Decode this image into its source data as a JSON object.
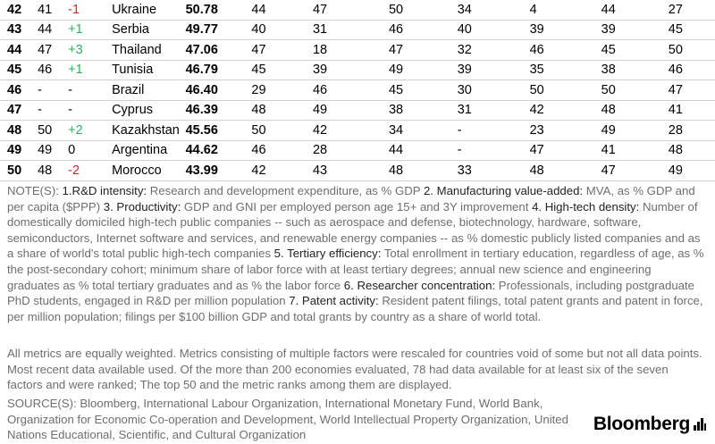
{
  "rows": [
    {
      "rank": "42",
      "prev": "41",
      "change": "-1",
      "dir": "down",
      "country": "Ukraine",
      "score": "50.78",
      "m": [
        "44",
        "47",
        "50",
        "34",
        "4",
        "44",
        "27"
      ]
    },
    {
      "rank": "43",
      "prev": "44",
      "change": "+1",
      "dir": "up",
      "country": "Serbia",
      "score": "49.77",
      "m": [
        "40",
        "31",
        "46",
        "40",
        "39",
        "39",
        "45"
      ]
    },
    {
      "rank": "44",
      "prev": "47",
      "change": "+3",
      "dir": "up",
      "country": "Thailand",
      "score": "47.06",
      "m": [
        "47",
        "18",
        "47",
        "32",
        "46",
        "45",
        "50"
      ]
    },
    {
      "rank": "45",
      "prev": "46",
      "change": "+1",
      "dir": "up",
      "country": "Tunisia",
      "score": "46.79",
      "m": [
        "45",
        "39",
        "49",
        "39",
        "35",
        "38",
        "46"
      ]
    },
    {
      "rank": "46",
      "prev": "-",
      "change": "-",
      "dir": "flat",
      "country": "Brazil",
      "score": "46.40",
      "m": [
        "29",
        "46",
        "45",
        "30",
        "50",
        "50",
        "47"
      ]
    },
    {
      "rank": "47",
      "prev": "-",
      "change": "-",
      "dir": "flat",
      "country": "Cyprus",
      "score": "46.39",
      "m": [
        "48",
        "49",
        "38",
        "31",
        "42",
        "48",
        "41"
      ]
    },
    {
      "rank": "48",
      "prev": "50",
      "change": "+2",
      "dir": "up",
      "country": "Kazakhstan",
      "score": "45.56",
      "m": [
        "50",
        "42",
        "34",
        "-",
        "23",
        "49",
        "28"
      ]
    },
    {
      "rank": "49",
      "prev": "49",
      "change": "0",
      "dir": "flat",
      "country": "Argentina",
      "score": "44.62",
      "m": [
        "46",
        "28",
        "44",
        "-",
        "47",
        "41",
        "48"
      ]
    },
    {
      "rank": "50",
      "prev": "48",
      "change": "-2",
      "dir": "down",
      "country": "Morocco",
      "score": "43.99",
      "m": [
        "42",
        "43",
        "48",
        "33",
        "48",
        "47",
        "49"
      ]
    }
  ],
  "colors": {
    "up": "#2fb35a",
    "down": "#e0203a",
    "notes": "#6e6e6e"
  },
  "notes": {
    "prefix": "NOTE(S): ",
    "items": [
      {
        "label": "1.R&D intensity:",
        "text": " Research and development expenditure, as % GDP "
      },
      {
        "label": "2. Manufacturing value-added:",
        "text": " MVA, as % GDP and per capita ($PPP) "
      },
      {
        "label": "3. Productivity:",
        "text": " GDP and GNI per employed person age 15+ and 3Y improvement "
      },
      {
        "label": "4. High-tech density:",
        "text": " Number of domestically domiciled high-tech public companies -- such as aerospace and defense, biotechnology, hardware, software, semiconductors, Internet software and services, and renewable energy companies -- as % domestic publicly listed companies and as a share of world's total public high-tech companies "
      },
      {
        "label": "5. Tertiary efficiency:",
        "text": " Total enrollment in tertiary education, regardless of age, as % the post-secondary cohort; minimum share of labor force with at least tertiary degrees; annual new science and engineering graduates as % total tertiary graduates and as % the labor force "
      },
      {
        "label": "6. Researcher concentration:",
        "text": " Professionals, including postgraduate PhD students, engaged in R&D per million population "
      },
      {
        "label": "7. Patent activity:",
        "text": " Resident patent filings, total patent grants and patent in force, per million population; filings per $100 billion GDP and total grants by country as a share of world total."
      }
    ]
  },
  "weighting_note": "All metrics are equally weighted. Metrics consisting of multiple factors were rescaled for countries void of some but not all data points. Most recent data available used. Of the more than 200 economies evaluated, 78 had data available for at least six of the seven factors and were ranked; The top 50 and the metric ranks among them are displayed.",
  "sources": "SOURCE(S): Bloomberg, International Labour Organization, International Monetary Fund, World Bank, Organization for Economic Co-operation and Development, World Intellectual Property Organization, United Nations Educational, Scientific, and Cultural Organization",
  "brand": {
    "name": "Bloomberg",
    "icon": "bar-chart-icon"
  }
}
